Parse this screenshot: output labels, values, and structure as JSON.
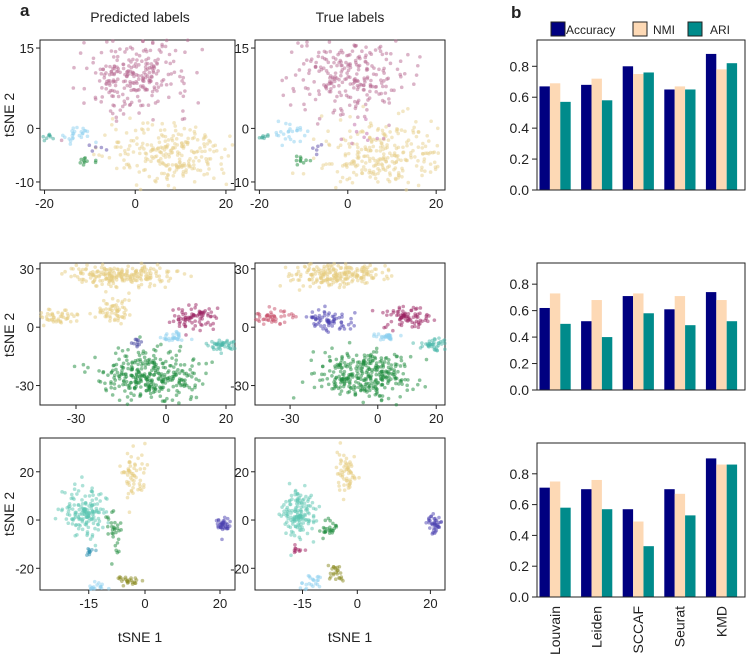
{
  "chart_data": {
    "panel_a": {
      "label": "a",
      "col_titles": [
        "Predicted labels",
        "True labels"
      ],
      "xlabel": "tSNE  1",
      "ylabel": "tSNE  2",
      "type": "scatter",
      "rows": [
        {
          "xlim": [
            -21,
            22
          ],
          "ylim": [
            -11.5,
            16.5
          ],
          "xticks": [
            -20,
            0,
            20
          ],
          "yticks": [
            15,
            0,
            -10
          ],
          "predicted": [
            {
              "color": "#b86a92",
              "c": [
                0,
                10
              ],
              "sd": [
                6,
                3.5
              ],
              "n": 260
            },
            {
              "color": "#e8d08c",
              "c": [
                8,
                -5
              ],
              "sd": [
                7,
                3
              ],
              "n": 260
            },
            {
              "color": "#8ccff0",
              "c": [
                -13,
                -1
              ],
              "sd": [
                2,
                1
              ],
              "n": 25
            },
            {
              "color": "#3aa898",
              "c": [
                -19,
                -1.5
              ],
              "sd": [
                0.8,
                0.3
              ],
              "n": 8
            },
            {
              "color": "#1a8a3a",
              "c": [
                -11,
                -6
              ],
              "sd": [
                1,
                0.4
              ],
              "n": 10
            },
            {
              "color": "#5a4aa8",
              "c": [
                -8,
                -3.5
              ],
              "sd": [
                1,
                0.6
              ],
              "n": 5
            }
          ],
          "true": [
            {
              "color": "#b86a92",
              "c": [
                0,
                10
              ],
              "sd": [
                6,
                3.5
              ],
              "n": 250
            },
            {
              "color": "#e8d08c",
              "c": [
                8,
                -5
              ],
              "sd": [
                7,
                3
              ],
              "n": 260
            },
            {
              "color": "#c06aa8",
              "c": [
                4,
                -1
              ],
              "sd": [
                3,
                1.5
              ],
              "n": 10
            },
            {
              "color": "#8ccff0",
              "c": [
                -13,
                -1
              ],
              "sd": [
                2,
                1
              ],
              "n": 25
            },
            {
              "color": "#3aa898",
              "c": [
                -19,
                -1.5
              ],
              "sd": [
                0.8,
                0.3
              ],
              "n": 8
            },
            {
              "color": "#1a8a3a",
              "c": [
                -11,
                -6
              ],
              "sd": [
                1,
                0.4
              ],
              "n": 10
            },
            {
              "color": "#5a4aa8",
              "c": [
                -8,
                -3.5
              ],
              "sd": [
                1,
                0.6
              ],
              "n": 5
            }
          ]
        },
        {
          "xlim": [
            -42,
            23
          ],
          "ylim": [
            -40,
            33
          ],
          "xticks": [
            -30,
            0,
            20
          ],
          "yticks": [
            30,
            0,
            -30
          ],
          "predicted": [
            {
              "color": "#e6cc7e",
              "c": [
                -15,
                27
              ],
              "sd": [
                8,
                3
              ],
              "n": 220
            },
            {
              "color": "#e6cc7e",
              "c": [
                -37,
                5
              ],
              "sd": [
                4,
                2
              ],
              "n": 50
            },
            {
              "color": "#e6cc7e",
              "c": [
                -17,
                8
              ],
              "sd": [
                4,
                3
              ],
              "n": 60
            },
            {
              "color": "#9a2060",
              "c": [
                10,
                5
              ],
              "sd": [
                4,
                3
              ],
              "n": 80
            },
            {
              "color": "#8ccff0",
              "c": [
                3,
                -5
              ],
              "sd": [
                2,
                1
              ],
              "n": 30
            },
            {
              "color": "#4ab8aa",
              "c": [
                20,
                -9
              ],
              "sd": [
                3,
                1.5
              ],
              "n": 50
            },
            {
              "color": "#1a8a3a",
              "c": [
                -5,
                -25
              ],
              "sd": [
                8,
                6
              ],
              "n": 320
            },
            {
              "color": "#3a3a9a",
              "c": [
                -10,
                -8
              ],
              "sd": [
                1,
                1.5
              ],
              "n": 10
            }
          ],
          "true": [
            {
              "color": "#e6cc7e",
              "c": [
                -15,
                27
              ],
              "sd": [
                8,
                3
              ],
              "n": 220
            },
            {
              "color": "#c8506a",
              "c": [
                -37,
                5
              ],
              "sd": [
                4,
                2
              ],
              "n": 50
            },
            {
              "color": "#4a40b0",
              "c": [
                -17,
                3
              ],
              "sd": [
                4,
                3
              ],
              "n": 70
            },
            {
              "color": "#9a2060",
              "c": [
                10,
                5
              ],
              "sd": [
                4,
                3
              ],
              "n": 80
            },
            {
              "color": "#8ccff0",
              "c": [
                3,
                -5
              ],
              "sd": [
                2,
                1
              ],
              "n": 30
            },
            {
              "color": "#4ab8aa",
              "c": [
                20,
                -9
              ],
              "sd": [
                3,
                1.5
              ],
              "n": 50
            },
            {
              "color": "#1a8a3a",
              "c": [
                -5,
                -25
              ],
              "sd": [
                8,
                6
              ],
              "n": 320
            }
          ]
        },
        {
          "xlim": [
            -28,
            24
          ],
          "ylim": [
            -29,
            34
          ],
          "xticks": [
            -15,
            0,
            20
          ],
          "yticks": [
            20,
            0,
            -20
          ],
          "predicted": [
            {
              "color": "#5cc6b2",
              "c": [
                -16,
                3
              ],
              "sd": [
                2.5,
                5
              ],
              "n": 160
            },
            {
              "color": "#e6cc7e",
              "c": [
                -3,
                20
              ],
              "sd": [
                1.5,
                5
              ],
              "n": 60
            },
            {
              "color": "#4a40b0",
              "c": [
                21,
                -2
              ],
              "sd": [
                1,
                2
              ],
              "n": 40
            },
            {
              "color": "#1a8a3a",
              "c": [
                -8,
                -5
              ],
              "sd": [
                1,
                4
              ],
              "n": 30
            },
            {
              "color": "#8a8a20",
              "c": [
                -5,
                -25
              ],
              "sd": [
                1.5,
                1
              ],
              "n": 25
            },
            {
              "color": "#8ccff0",
              "c": [
                -13,
                -28
              ],
              "sd": [
                1.5,
                1.5
              ],
              "n": 25
            },
            {
              "color": "#2a90b0",
              "c": [
                -15,
                -13
              ],
              "sd": [
                0.8,
                1
              ],
              "n": 10
            }
          ],
          "true": [
            {
              "color": "#5cc6b2",
              "c": [
                -16,
                3
              ],
              "sd": [
                2.5,
                5
              ],
              "n": 150
            },
            {
              "color": "#e6cc7e",
              "c": [
                -3,
                20
              ],
              "sd": [
                1.5,
                5
              ],
              "n": 60
            },
            {
              "color": "#4a40b0",
              "c": [
                21,
                -2
              ],
              "sd": [
                1,
                2
              ],
              "n": 40
            },
            {
              "color": "#1a8a3a",
              "c": [
                -8,
                -3
              ],
              "sd": [
                1,
                2
              ],
              "n": 25
            },
            {
              "color": "#8a8a20",
              "c": [
                -6,
                -22
              ],
              "sd": [
                1.5,
                2
              ],
              "n": 25
            },
            {
              "color": "#8ccff0",
              "c": [
                -13,
                -26
              ],
              "sd": [
                1.5,
                1.5
              ],
              "n": 25
            },
            {
              "color": "#a02060",
              "c": [
                -16,
                -12
              ],
              "sd": [
                0.8,
                1
              ],
              "n": 10
            }
          ]
        }
      ]
    },
    "panel_b": {
      "label": "b",
      "type": "bar",
      "categories": [
        "Louvain",
        "Leiden",
        "SCCAF",
        "Seurat",
        "KMD"
      ],
      "legend": [
        "Accuracy",
        "NMI",
        "ARI"
      ],
      "colors": [
        "#000080",
        "#fdd9b5",
        "#008b8b"
      ],
      "yticks": [
        "0.0",
        "0.2",
        "0.4",
        "0.6",
        "0.8"
      ],
      "charts": [
        {
          "ylim": [
            0,
            0.97
          ],
          "series": [
            {
              "name": "Accuracy",
              "values": [
                0.67,
                0.68,
                0.8,
                0.65,
                0.88
              ]
            },
            {
              "name": "NMI",
              "values": [
                0.69,
                0.72,
                0.75,
                0.67,
                0.78
              ]
            },
            {
              "name": "ARI",
              "values": [
                0.57,
                0.58,
                0.76,
                0.65,
                0.82
              ]
            }
          ]
        },
        {
          "ylim": [
            0,
            0.96
          ],
          "series": [
            {
              "name": "Accuracy",
              "values": [
                0.62,
                0.52,
                0.71,
                0.61,
                0.74
              ]
            },
            {
              "name": "NMI",
              "values": [
                0.73,
                0.68,
                0.73,
                0.71,
                0.68
              ]
            },
            {
              "name": "ARI",
              "values": [
                0.5,
                0.4,
                0.58,
                0.49,
                0.52
              ]
            }
          ]
        },
        {
          "ylim": [
            0,
            1.0
          ],
          "series": [
            {
              "name": "Accuracy",
              "values": [
                0.71,
                0.7,
                0.57,
                0.7,
                0.9
              ]
            },
            {
              "name": "NMI",
              "values": [
                0.75,
                0.76,
                0.49,
                0.67,
                0.86
              ]
            },
            {
              "name": "ARI",
              "values": [
                0.58,
                0.57,
                0.33,
                0.53,
                0.86
              ]
            }
          ]
        }
      ]
    }
  }
}
